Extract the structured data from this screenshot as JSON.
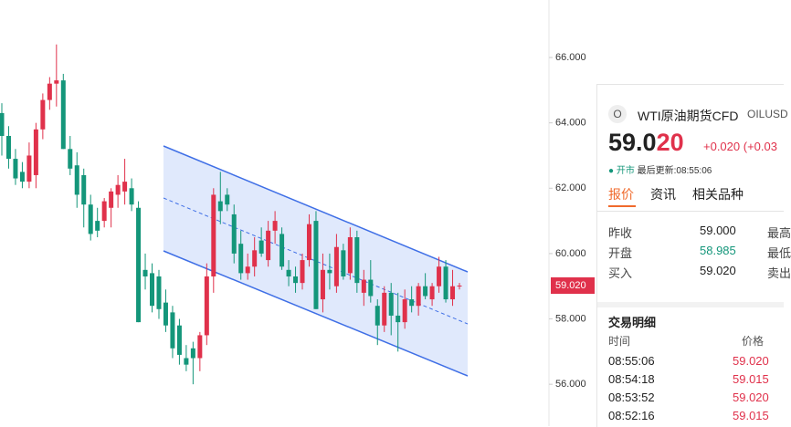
{
  "chart_data": {
    "type": "candlestick",
    "open": [
      64.3,
      63.6,
      62.9,
      62.5,
      62.2,
      62.4,
      63.8,
      64.7,
      65.2,
      65.3,
      63.2,
      62.7,
      62.4,
      61.5,
      61.0,
      61.0,
      61.4,
      61.8,
      61.9,
      62.0,
      61.4,
      59.5,
      59.4,
      59.3,
      58.5,
      58.2,
      57.8,
      56.8,
      57.1,
      56.8,
      57.5,
      59.3,
      61.6,
      61.8,
      61.2,
      60.3,
      59.4,
      59.6,
      60.4,
      59.8,
      60.7,
      60.6,
      59.5,
      59.3,
      59.1,
      59.8,
      61.0,
      58.6,
      59.5,
      59.0,
      60.1,
      59.4,
      60.5,
      58.8,
      59.2,
      58.4,
      57.8,
      58.8,
      58.1,
      57.9,
      58.6,
      58.4,
      59.0,
      58.6,
      59.0,
      59.6,
      58.6,
      59.0
    ],
    "high": [
      64.6,
      63.9,
      63.2,
      62.8,
      63.4,
      64.0,
      64.9,
      65.4,
      66.4,
      65.5,
      63.6,
      63.1,
      62.6,
      61.8,
      61.4,
      61.7,
      62.0,
      62.4,
      62.9,
      62.3,
      61.6,
      60.0,
      59.7,
      59.5,
      58.9,
      58.4,
      58.0,
      57.2,
      57.3,
      57.6,
      59.7,
      62.0,
      62.5,
      62.0,
      61.5,
      60.7,
      60.0,
      60.5,
      60.8,
      61.0,
      61.3,
      60.8,
      59.8,
      59.6,
      60.0,
      61.2,
      61.3,
      60.0,
      60.0,
      60.6,
      60.3,
      60.8,
      60.7,
      59.5,
      59.8,
      58.6,
      59.0,
      59.1,
      58.8,
      58.9,
      59.0,
      59.1,
      59.4,
      59.1,
      59.9,
      59.8,
      59.5,
      59.1
    ],
    "low": [
      63.0,
      62.6,
      62.1,
      62.0,
      62.0,
      62.0,
      63.5,
      64.4,
      64.5,
      63.2,
      62.4,
      61.4,
      60.8,
      60.4,
      60.5,
      60.8,
      60.8,
      61.4,
      61.5,
      61.3,
      57.9,
      58.9,
      58.2,
      58.0,
      57.6,
      56.8,
      56.6,
      56.4,
      56.0,
      56.4,
      57.2,
      58.8,
      60.9,
      61.3,
      59.7,
      59.2,
      59.2,
      59.3,
      59.9,
      59.6,
      60.3,
      59.5,
      59.0,
      58.8,
      58.9,
      59.6,
      58.3,
      58.2,
      58.9,
      58.8,
      59.2,
      59.2,
      58.8,
      58.4,
      58.5,
      57.2,
      57.6,
      57.5,
      57.0,
      57.7,
      58.2,
      58.1,
      58.6,
      58.4,
      58.8,
      58.5,
      58.4,
      58.9
    ],
    "close": [
      63.6,
      62.9,
      62.3,
      62.2,
      63.0,
      63.8,
      64.7,
      65.2,
      65.3,
      63.2,
      62.6,
      61.8,
      61.5,
      60.6,
      60.7,
      61.6,
      61.9,
      62.1,
      62.2,
      61.5,
      57.9,
      59.3,
      58.4,
      58.3,
      57.8,
      57.1,
      56.9,
      56.6,
      56.8,
      57.5,
      59.3,
      61.8,
      61.3,
      61.5,
      60.0,
      59.4,
      59.6,
      60.1,
      60.0,
      60.7,
      61.0,
      59.6,
      59.3,
      59.1,
      59.8,
      60.9,
      58.3,
      59.5,
      59.4,
      60.2,
      59.3,
      60.5,
      59.1,
      59.2,
      58.7,
      57.8,
      58.8,
      58.1,
      57.9,
      58.6,
      58.4,
      59.0,
      58.7,
      59.0,
      59.6,
      58.6,
      59.0,
      59.02
    ],
    "up_color": "#e0314b",
    "down_color": "#14967a",
    "ylim": [
      54.72,
      67.76
    ],
    "yticks": [
      {
        "value": 56,
        "label": "56.000"
      },
      {
        "value": 58,
        "label": "58.000"
      },
      {
        "value": 60,
        "label": "60.000"
      },
      {
        "value": 62,
        "label": "62.000"
      },
      {
        "value": 64,
        "label": "64.000"
      },
      {
        "value": 66,
        "label": "66.000"
      }
    ],
    "last_price": {
      "value": 59.02,
      "label": "59.020"
    }
  },
  "panel": {
    "icon": "O",
    "name": "WTI原油期货CFD",
    "code": "OILUSD",
    "price_main": "59.0",
    "price_highlight": "20",
    "change": "+0.020",
    "change_pct": "(+0.03",
    "status": "● 开市",
    "updated": "最后更新:08:55:06",
    "tabs": [
      "报价",
      "资讯",
      "相关品种"
    ],
    "quote": [
      [
        "昨收",
        "59.000",
        "最高"
      ],
      [
        "开盘",
        "58.985",
        "最低"
      ],
      [
        "买入",
        "59.020",
        "卖出"
      ]
    ],
    "trades_title": "交易明细",
    "trades_header": [
      "时间",
      "价格"
    ],
    "trades": [
      [
        "08:55:06",
        "59.020"
      ],
      [
        "08:54:18",
        "59.015"
      ],
      [
        "08:53:52",
        "59.020"
      ],
      [
        "08:52:16",
        "59.015"
      ]
    ]
  }
}
